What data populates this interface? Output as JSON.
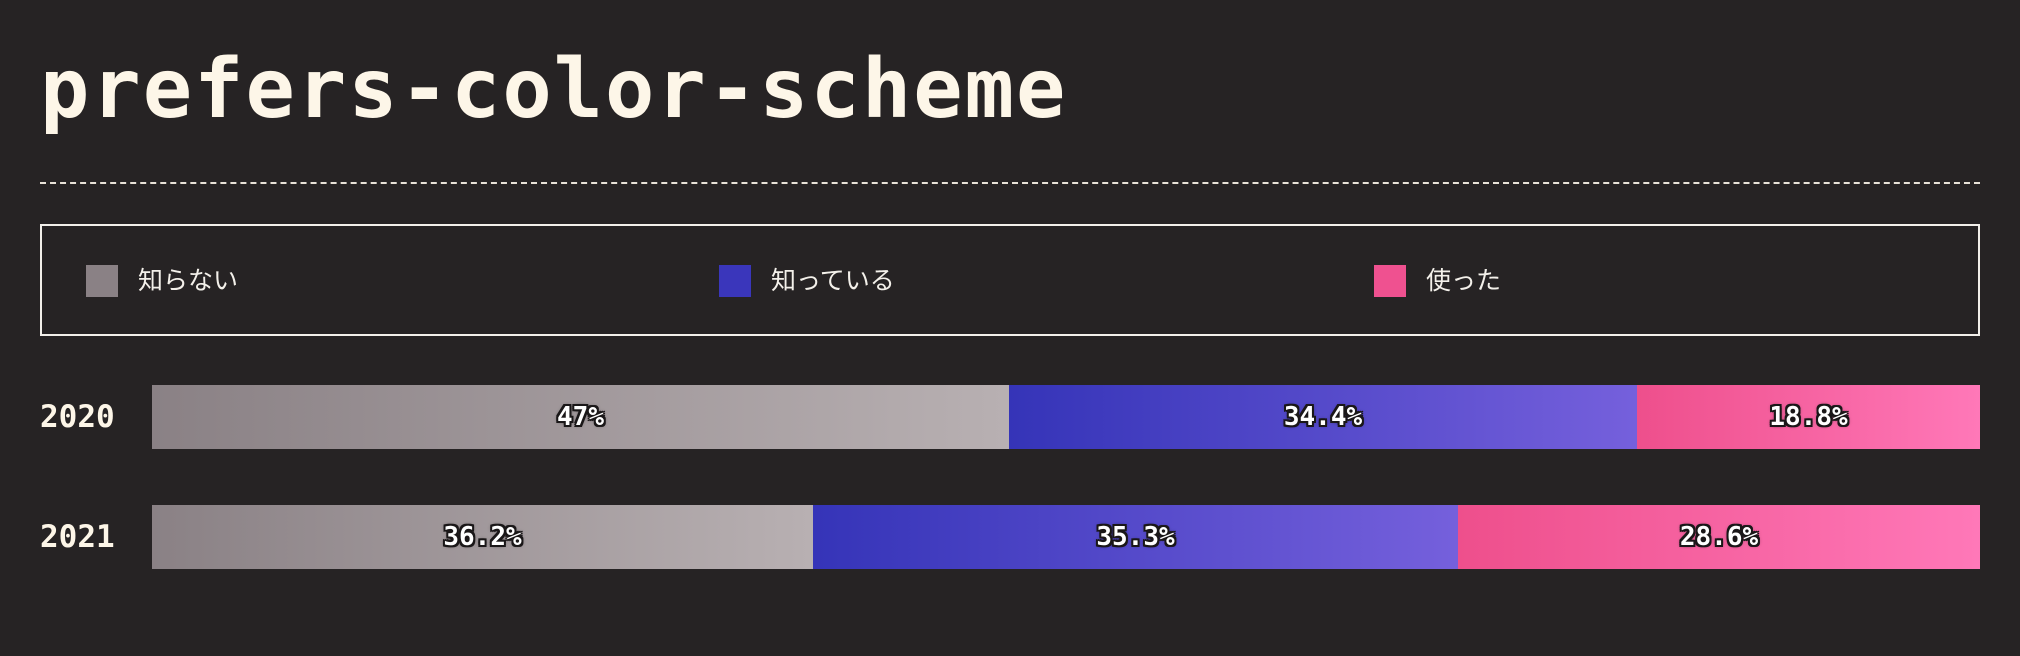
{
  "title": "prefers-color-scheme",
  "colors": {
    "background": "#262324",
    "title_text": "#fdf6e8",
    "unknown_start": "#8a8185",
    "unknown_end": "#b8b0b2",
    "aware_start": "#3534b8",
    "aware_end": "#7560dc",
    "used_start": "#ee4f8c",
    "used_end": "#ff78b8"
  },
  "legend": [
    {
      "key": "unknown",
      "label": "知らない",
      "color": "#8a8185",
      "icon": "gray-square-swatch"
    },
    {
      "key": "aware",
      "label": "知っている",
      "color": "#3a36bb",
      "icon": "blue-square-swatch"
    },
    {
      "key": "used",
      "label": "使った",
      "color": "#ef5190",
      "icon": "pink-square-swatch"
    }
  ],
  "chart_data": {
    "type": "bar",
    "orientation": "horizontal",
    "stacked": true,
    "normalized_to": 100,
    "title": "prefers-color-scheme",
    "categories": [
      "2020",
      "2021"
    ],
    "series": [
      {
        "name": "知らない",
        "key": "unknown",
        "values": [
          47,
          36.2
        ],
        "labels": [
          "47%",
          "36.2%"
        ]
      },
      {
        "name": "知っている",
        "key": "aware",
        "values": [
          34.4,
          35.3
        ],
        "labels": [
          "34.4%",
          "35.3%"
        ]
      },
      {
        "name": "使った",
        "key": "used",
        "values": [
          18.8,
          28.6
        ],
        "labels": [
          "18.8%",
          "28.6%"
        ]
      }
    ],
    "xlabel": "",
    "ylabel": "",
    "legend_position": "top",
    "grid": false
  }
}
